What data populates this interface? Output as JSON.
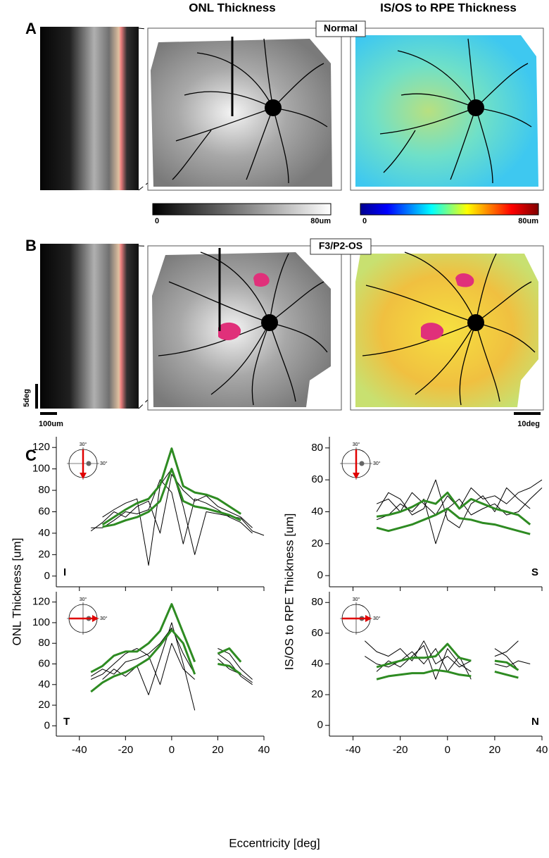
{
  "panel_a": {
    "label": "A",
    "title_left": "ONL Thickness",
    "title_right": "IS/OS to RPE Thickness",
    "tag": "Normal",
    "gray_bar": {
      "min": "0",
      "max": "80um"
    },
    "jet_bar": {
      "min": "0",
      "max": "80um"
    }
  },
  "panel_b": {
    "label": "B",
    "tag": "F3/P2-OS",
    "scale_y": "5deg",
    "scale_x": "100um",
    "scale_map": "10deg"
  },
  "panel_c": {
    "label": "C",
    "y_label_left": "ONL Thickness [um]",
    "y_label_right": "IS/OS to RPE Thickness [um]",
    "x_label": "Eccentricity [deg]",
    "inset_label": "30°"
  },
  "chart_data": [
    {
      "type": "line",
      "annotation": "I",
      "x": [
        -45,
        -40,
        -35,
        -30,
        -25,
        -20,
        -15,
        -10,
        -5,
        0,
        5,
        10,
        15,
        20,
        25,
        30,
        35,
        40
      ],
      "xlim": [
        -50,
        40
      ],
      "xticks": [
        -40,
        -20,
        0,
        20,
        40
      ],
      "ylim": [
        -10,
        130
      ],
      "yticks": [
        0,
        20,
        40,
        60,
        80,
        100,
        120
      ],
      "series": [
        {
          "color": "#000000",
          "width": 1,
          "values": [
            null,
            null,
            42,
            50,
            60,
            55,
            65,
            70,
            40,
            95,
            80,
            70,
            75,
            65,
            60,
            55,
            45,
            null
          ]
        },
        {
          "color": "#000000",
          "width": 1,
          "values": [
            null,
            null,
            45,
            45,
            52,
            60,
            58,
            62,
            90,
            78,
            30,
            72,
            68,
            62,
            55,
            50,
            40,
            null
          ]
        },
        {
          "color": "#000000",
          "width": 1,
          "values": [
            null,
            null,
            null,
            55,
            62,
            68,
            72,
            10,
            85,
            100,
            65,
            20,
            60,
            58,
            56,
            54,
            42,
            38
          ]
        },
        {
          "color": "#2e8b22",
          "width": 3,
          "values": [
            null,
            null,
            null,
            48,
            55,
            62,
            68,
            72,
            85,
            119,
            84,
            78,
            76,
            72,
            65,
            58,
            null,
            null
          ]
        },
        {
          "color": "#2e8b22",
          "width": 3,
          "values": [
            null,
            null,
            null,
            46,
            48,
            52,
            55,
            60,
            70,
            100,
            70,
            65,
            63,
            60,
            57,
            52,
            null,
            null
          ]
        }
      ]
    },
    {
      "type": "line",
      "annotation": "S",
      "x": [
        -45,
        -40,
        -35,
        -30,
        -25,
        -20,
        -15,
        -10,
        -5,
        0,
        5,
        10,
        15,
        20,
        25,
        30,
        35,
        40
      ],
      "xlim": [
        -50,
        40
      ],
      "xticks": [
        -40,
        -20,
        0,
        20,
        40
      ],
      "ylim": [
        -7,
        87
      ],
      "yticks": [
        0,
        20,
        40,
        60,
        80
      ],
      "series": [
        {
          "color": "#000000",
          "width": 1,
          "values": [
            null,
            null,
            null,
            45,
            48,
            40,
            52,
            45,
            38,
            50,
            42,
            55,
            48,
            50,
            45,
            52,
            55,
            60
          ]
        },
        {
          "color": "#000000",
          "width": 1,
          "values": [
            null,
            null,
            null,
            35,
            38,
            45,
            40,
            48,
            20,
            42,
            48,
            38,
            42,
            45,
            38,
            40,
            48,
            55
          ]
        },
        {
          "color": "#000000",
          "width": 1,
          "values": [
            null,
            null,
            null,
            40,
            52,
            48,
            38,
            42,
            60,
            35,
            30,
            45,
            50,
            40,
            55,
            48,
            42,
            null
          ]
        },
        {
          "color": "#2e8b22",
          "width": 3,
          "values": [
            null,
            null,
            null,
            37,
            38,
            40,
            43,
            47,
            45,
            52,
            42,
            48,
            45,
            42,
            40,
            38,
            32,
            null
          ]
        },
        {
          "color": "#2e8b22",
          "width": 3,
          "values": [
            null,
            null,
            null,
            30,
            28,
            30,
            32,
            35,
            38,
            42,
            36,
            35,
            33,
            32,
            30,
            28,
            26,
            null
          ]
        }
      ]
    },
    {
      "type": "line",
      "annotation": "T",
      "x": [
        -45,
        -40,
        -35,
        -30,
        -25,
        -20,
        -15,
        -10,
        -5,
        0,
        5,
        10,
        15,
        20,
        25,
        30,
        35,
        40
      ],
      "xlim": [
        -50,
        40
      ],
      "xticks": [
        -40,
        -20,
        0,
        20,
        40
      ],
      "ylim": [
        -10,
        130
      ],
      "yticks": [
        0,
        20,
        40,
        60,
        80,
        100,
        120
      ],
      "series": [
        {
          "color": "#000000",
          "width": 1,
          "values": [
            null,
            null,
            48,
            55,
            50,
            62,
            65,
            70,
            80,
            95,
            70,
            50,
            null,
            75,
            70,
            55,
            45,
            null
          ]
        },
        {
          "color": "#000000",
          "width": 1,
          "values": [
            null,
            null,
            null,
            45,
            55,
            48,
            58,
            30,
            65,
            100,
            60,
            15,
            null,
            65,
            55,
            50,
            42,
            null
          ]
        },
        {
          "color": "#000000",
          "width": 1,
          "values": [
            null,
            null,
            45,
            50,
            60,
            70,
            75,
            68,
            40,
            80,
            55,
            45,
            null,
            70,
            62,
            48,
            40,
            null
          ]
        },
        {
          "color": "#2e8b22",
          "width": 3,
          "values": [
            null,
            null,
            52,
            58,
            68,
            72,
            72,
            80,
            92,
            118,
            90,
            62,
            null,
            70,
            75,
            62,
            null,
            null
          ]
        },
        {
          "color": "#2e8b22",
          "width": 3,
          "values": [
            null,
            null,
            33,
            42,
            48,
            52,
            58,
            65,
            78,
            93,
            80,
            50,
            null,
            60,
            58,
            50,
            null,
            null
          ]
        }
      ]
    },
    {
      "type": "line",
      "annotation": "N",
      "x": [
        -45,
        -40,
        -35,
        -30,
        -25,
        -20,
        -15,
        -10,
        -5,
        0,
        5,
        10,
        15,
        20,
        25,
        30,
        35,
        40
      ],
      "xlim": [
        -50,
        40
      ],
      "xticks": [
        -40,
        -20,
        0,
        20,
        40
      ],
      "ylim": [
        -7,
        87
      ],
      "yticks": [
        0,
        20,
        40,
        60,
        80
      ],
      "series": [
        {
          "color": "#000000",
          "width": 1,
          "values": [
            null,
            null,
            55,
            48,
            45,
            50,
            42,
            55,
            40,
            45,
            38,
            42,
            null,
            45,
            48,
            55,
            null,
            null
          ]
        },
        {
          "color": "#000000",
          "width": 1,
          "values": [
            null,
            null,
            45,
            40,
            38,
            42,
            48,
            40,
            50,
            35,
            45,
            30,
            null,
            40,
            38,
            42,
            40,
            null
          ]
        },
        {
          "color": "#000000",
          "width": 1,
          "values": [
            null,
            null,
            null,
            35,
            42,
            38,
            45,
            52,
            30,
            50,
            40,
            35,
            null,
            50,
            45,
            36,
            null,
            null
          ]
        },
        {
          "color": "#2e8b22",
          "width": 3,
          "values": [
            null,
            null,
            null,
            38,
            40,
            42,
            44,
            44,
            45,
            53,
            44,
            42,
            null,
            42,
            41,
            36,
            null,
            null
          ]
        },
        {
          "color": "#2e8b22",
          "width": 3,
          "values": [
            null,
            null,
            null,
            30,
            32,
            33,
            34,
            34,
            36,
            35,
            33,
            32,
            null,
            35,
            33,
            31,
            null,
            null
          ]
        }
      ]
    }
  ]
}
